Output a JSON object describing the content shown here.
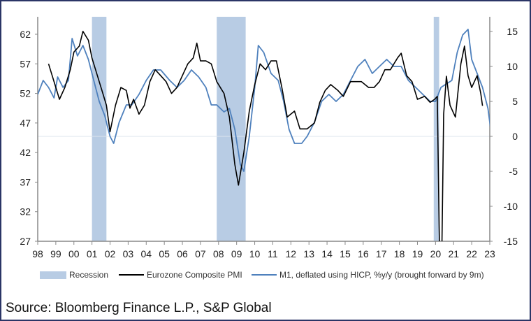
{
  "chart_data": {
    "type": "line",
    "x_ticks": [
      "98",
      "99",
      "00",
      "01",
      "02",
      "03",
      "04",
      "05",
      "06",
      "07",
      "08",
      "09",
      "10",
      "11",
      "12",
      "13",
      "14",
      "15",
      "16",
      "17",
      "18",
      "19",
      "20",
      "21",
      "22",
      "23"
    ],
    "xlim": [
      1998,
      2023
    ],
    "y_left": {
      "ticks": [
        "27",
        "32",
        "37",
        "42",
        "47",
        "52",
        "57",
        "62"
      ],
      "ylim": [
        27,
        65
      ]
    },
    "y_right": {
      "ticks": [
        "-15",
        "-10",
        "-5",
        "0",
        "5",
        "10",
        "15"
      ],
      "ylim": [
        -15,
        17
      ]
    },
    "recessions": [
      [
        2001.0,
        2001.8
      ],
      [
        2007.9,
        2009.5
      ],
      [
        2019.9,
        2020.2
      ]
    ],
    "series": [
      {
        "name": "Eurozone Composite PMI",
        "axis": "left",
        "color": "#000000",
        "x": [
          1998.6,
          1998.8,
          1999.0,
          1999.2,
          1999.5,
          1999.8,
          2000.0,
          2000.3,
          2000.5,
          2000.8,
          2001.0,
          2001.3,
          2001.6,
          2001.8,
          2002.0,
          2002.3,
          2002.6,
          2002.9,
          2003.1,
          2003.3,
          2003.6,
          2003.9,
          2004.2,
          2004.5,
          2004.8,
          2005.1,
          2005.4,
          2005.7,
          2006.0,
          2006.3,
          2006.6,
          2006.8,
          2007.0,
          2007.3,
          2007.6,
          2007.9,
          2008.3,
          2008.6,
          2008.9,
          2009.1,
          2009.4,
          2009.7,
          2010.0,
          2010.3,
          2010.6,
          2010.9,
          2011.2,
          2011.5,
          2011.8,
          2012.2,
          2012.5,
          2012.9,
          2013.3,
          2013.6,
          2013.9,
          2014.2,
          2014.6,
          2014.9,
          2015.3,
          2015.6,
          2015.9,
          2016.3,
          2016.6,
          2016.9,
          2017.2,
          2017.5,
          2017.9,
          2018.1,
          2018.4,
          2018.7,
          2019.0,
          2019.4,
          2019.7,
          2019.95,
          2020.1,
          2020.2,
          2020.3,
          2020.45,
          2020.6,
          2020.8,
          2020.95,
          2021.1,
          2021.4,
          2021.6,
          2021.8,
          2022.0,
          2022.3,
          2022.5,
          2022.6
        ],
        "y": [
          57,
          55,
          53,
          51,
          53,
          56,
          59,
          60,
          62.5,
          61,
          58,
          55,
          52,
          50,
          45.5,
          50,
          53,
          52.5,
          49.5,
          51,
          48.5,
          50,
          54,
          56,
          55,
          54,
          52,
          53,
          55,
          57,
          58,
          60.5,
          57.5,
          57.5,
          57,
          54,
          52,
          48,
          40,
          36.5,
          42,
          49,
          53.5,
          57,
          56,
          57.5,
          57.5,
          53,
          48,
          49,
          46,
          46,
          47,
          50.5,
          52.5,
          53.5,
          52.5,
          51.5,
          54,
          54,
          54,
          53,
          53,
          54,
          56,
          56,
          58,
          58.8,
          55,
          54,
          51,
          51.5,
          50.5,
          51,
          51.5,
          29.7,
          13.6,
          48.5,
          54.9,
          50,
          49,
          48,
          57,
          60,
          55,
          53,
          55,
          52,
          49.9
        ]
      },
      {
        "name": "M1, deflated using HICP, %y/y (brought forward by 9m)",
        "axis": "right",
        "color": "#4f81bd",
        "x": [
          1998.0,
          1998.3,
          1998.6,
          1998.9,
          1999.1,
          1999.4,
          1999.7,
          1999.9,
          2000.2,
          2000.5,
          2000.8,
          2001.1,
          2001.4,
          2001.7,
          2002.0,
          2002.2,
          2002.5,
          2002.9,
          2003.2,
          2003.6,
          2004.0,
          2004.4,
          2004.8,
          2005.3,
          2005.7,
          2006.1,
          2006.5,
          2006.9,
          2007.3,
          2007.6,
          2007.9,
          2008.3,
          2008.6,
          2008.9,
          2009.2,
          2009.4,
          2009.7,
          2010.0,
          2010.2,
          2010.5,
          2010.9,
          2011.3,
          2011.6,
          2011.9,
          2012.2,
          2012.6,
          2012.9,
          2013.3,
          2013.7,
          2014.1,
          2014.5,
          2014.9,
          2015.3,
          2015.7,
          2016.1,
          2016.5,
          2016.9,
          2017.3,
          2017.7,
          2018.1,
          2018.5,
          2018.9,
          2019.3,
          2019.7,
          2020.0,
          2020.3,
          2020.6,
          2020.9,
          2021.2,
          2021.5,
          2021.8,
          2022.0,
          2022.3,
          2022.6,
          2022.9,
          2023.1
        ],
        "y": [
          6,
          8,
          7,
          5.5,
          8.5,
          7,
          8,
          14,
          11.5,
          13,
          11,
          8,
          5,
          3,
          0,
          -1,
          2,
          4.5,
          4.5,
          6,
          8,
          9.5,
          9.5,
          8,
          7,
          8,
          9.5,
          8.5,
          7,
          4.5,
          4.5,
          3.5,
          4,
          1,
          -4,
          -5,
          0,
          7,
          13,
          12,
          9,
          8,
          5,
          1,
          -1,
          -1,
          0,
          2,
          5,
          6,
          5,
          6,
          8,
          10,
          11,
          9,
          10,
          11,
          10,
          10,
          8,
          7,
          6,
          5,
          5,
          7,
          7.5,
          8,
          12,
          14.5,
          15.3,
          11,
          9,
          7,
          4,
          0
        ]
      }
    ],
    "legend": {
      "placement": "bottom",
      "items": [
        "Recession",
        "Eurozone Composite PMI",
        "M1, deflated using HICP, %y/y (brought forward by 9m)"
      ]
    },
    "colors": {
      "recession": "#b8cce4",
      "pmi": "#000000",
      "m1": "#4f81bd"
    }
  },
  "source": "Source: Bloomberg Finance L.P., S&P Global"
}
